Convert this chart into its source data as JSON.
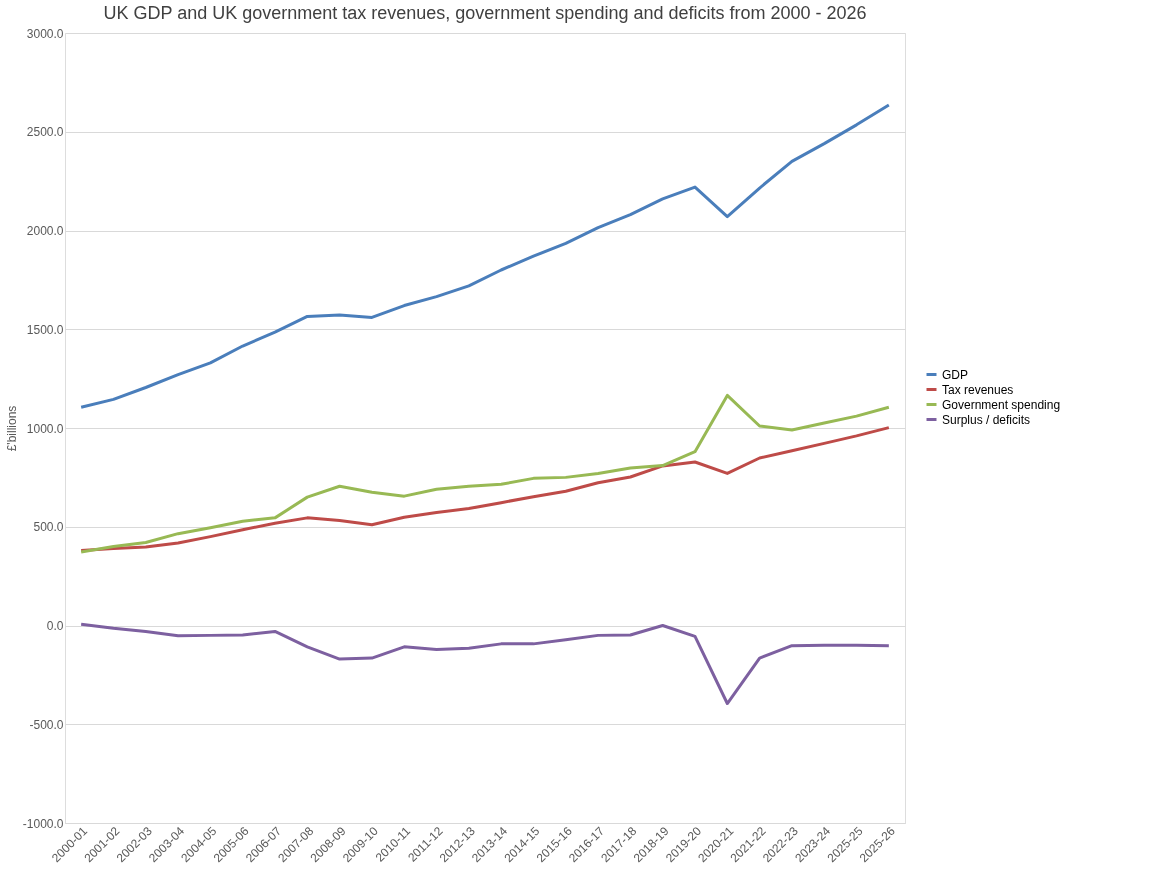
{
  "chart_data": {
    "type": "line",
    "title": "UK GDP and UK government tax revenues, government spending and deficits from 2000 - 2026",
    "ylabel": "£'billions",
    "categories": [
      "2000-01",
      "2001-02",
      "2002-03",
      "2003-04",
      "2004-05",
      "2005-06",
      "2006-07",
      "2007-08",
      "2008-09",
      "2009-10",
      "2010-11",
      "2011-12",
      "2012-13",
      "2013-14",
      "2014-15",
      "2015-16",
      "2016-17",
      "2017-18",
      "2018-19",
      "2019-20",
      "2020-21",
      "2021-22",
      "2022-23",
      "2023-24",
      "2025-25",
      "2025-26"
    ],
    "series": [
      {
        "name": "GDP",
        "color": "#4a7ebb",
        "values": [
          1105,
          1145,
          1205,
          1270,
          1330,
          1415,
          1485,
          1565,
          1572,
          1560,
          1620,
          1665,
          1720,
          1800,
          1870,
          1935,
          2015,
          2080,
          2160,
          2220,
          2070,
          2215,
          2350,
          2440,
          2535,
          2635
        ]
      },
      {
        "name": "Tax revenues",
        "color": "#be4b48",
        "values": [
          380,
          390,
          398,
          418,
          450,
          485,
          518,
          545,
          532,
          510,
          548,
          572,
          592,
          622,
          652,
          680,
          723,
          752,
          808,
          828,
          770,
          848,
          885,
          922,
          960,
          1002
        ]
      },
      {
        "name": "Government spending",
        "color": "#98b954",
        "values": [
          372,
          400,
          420,
          465,
          495,
          528,
          545,
          650,
          705,
          675,
          655,
          690,
          705,
          715,
          745,
          750,
          770,
          797,
          810,
          880,
          1165,
          1010,
          990,
          1025,
          1060,
          1105
        ]
      },
      {
        "name": "Surplus / deficits",
        "color": "#7d60a0",
        "values": [
          6,
          -14,
          -30,
          -52,
          -50,
          -48,
          -30,
          -108,
          -170,
          -165,
          -108,
          -122,
          -115,
          -93,
          -93,
          -72,
          -50,
          -48,
          0,
          -55,
          -395,
          -165,
          -102,
          -100,
          -100,
          -102
        ]
      }
    ],
    "ylim": [
      -1000,
      3000
    ],
    "yticks": [
      {
        "value": -1000,
        "label": "-1000.0"
      },
      {
        "value": -500,
        "label": "-500.0"
      },
      {
        "value": 0,
        "label": "0.0"
      },
      {
        "value": 500,
        "label": "500.0"
      },
      {
        "value": 1000,
        "label": "1000.0"
      },
      {
        "value": 1500,
        "label": "1500.0"
      },
      {
        "value": 2000,
        "label": "2000.0"
      },
      {
        "value": 2500,
        "label": "2500.0"
      },
      {
        "value": 3000,
        "label": "3000.0"
      }
    ],
    "grid": "y",
    "legend": "right",
    "marker": "none",
    "line_style": "solid"
  }
}
